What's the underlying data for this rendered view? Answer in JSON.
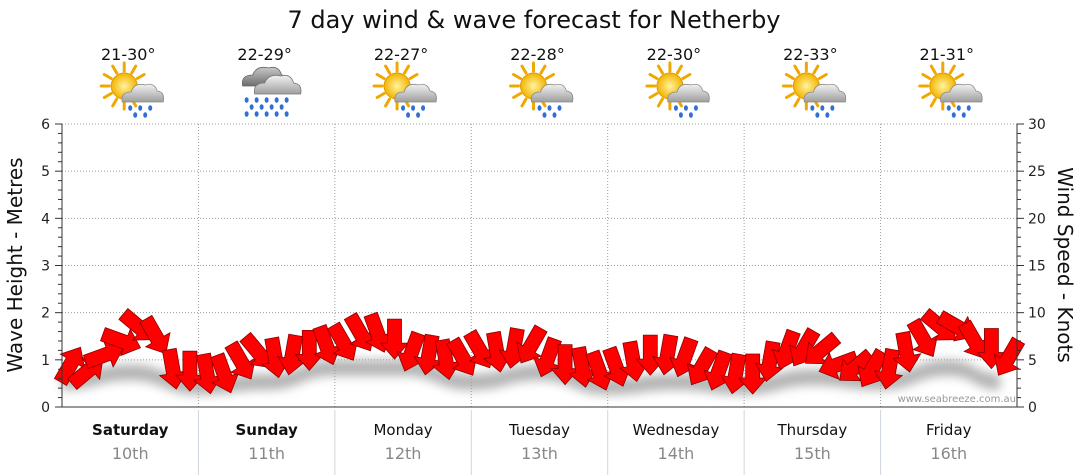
{
  "chart_data": {
    "type": "line",
    "title": "7 day wind & wave forecast for Netherby",
    "ylabel_left": "Wave Height - Metres",
    "ylabel_right": "Wind Speed - Knots",
    "ylim_left": [
      0,
      6
    ],
    "ylim_right": [
      0,
      30
    ],
    "left_ticks": [
      "0",
      "1",
      "2",
      "3",
      "4",
      "5",
      "6"
    ],
    "right_ticks": [
      "0",
      "5",
      "10",
      "15",
      "20",
      "25",
      "30"
    ],
    "days": [
      {
        "name": "Saturday",
        "date": "10th",
        "temp": "21-30°",
        "icon": "partly-cloudy-showers-icon",
        "bold": true
      },
      {
        "name": "Sunday",
        "date": "11th",
        "temp": "22-29°",
        "icon": "rain-cloud-icon",
        "bold": true
      },
      {
        "name": "Monday",
        "date": "12th",
        "temp": "22-27°",
        "icon": "partly-cloudy-showers-icon",
        "bold": false
      },
      {
        "name": "Tuesday",
        "date": "13th",
        "temp": "22-28°",
        "icon": "partly-cloudy-showers-icon",
        "bold": false
      },
      {
        "name": "Wednesday",
        "date": "14th",
        "temp": "22-30°",
        "icon": "partly-cloudy-showers-icon",
        "bold": false
      },
      {
        "name": "Thursday",
        "date": "15th",
        "temp": "22-33°",
        "icon": "partly-cloudy-showers-icon",
        "bold": false
      },
      {
        "name": "Friday",
        "date": "16th",
        "temp": "21-31°",
        "icon": "partly-cloudy-showers-icon",
        "bold": false
      }
    ],
    "wind_series": {
      "name": "Wind Speed",
      "x_day": [
        0.0,
        0.125,
        0.25,
        0.375,
        0.5,
        0.625,
        0.75,
        0.875,
        1.0,
        1.125,
        1.25,
        1.375,
        1.5,
        1.625,
        1.75,
        1.875,
        2.0,
        2.125,
        2.25,
        2.375,
        2.5,
        2.625,
        2.75,
        2.875,
        3.0,
        3.125,
        3.25,
        3.375,
        3.5,
        3.625,
        3.75,
        3.875,
        4.0,
        4.125,
        4.25,
        4.375,
        4.5,
        4.625,
        4.75,
        4.875,
        5.0,
        5.125,
        5.25,
        5.375,
        5.5,
        5.625,
        5.75,
        5.875,
        6.0,
        6.125,
        6.25,
        6.375,
        6.5,
        6.625,
        6.75,
        6.875
      ],
      "knots": [
        4.5,
        3.8,
        5.5,
        7.0,
        8.5,
        7.5,
        4.0,
        3.8,
        3.5,
        3.5,
        4.8,
        5.8,
        5.2,
        5.5,
        6.0,
        6.5,
        6.8,
        7.8,
        7.8,
        7.2,
        5.8,
        5.5,
        5.0,
        5.2,
        6.0,
        5.8,
        6.2,
        6.5,
        5.2,
        4.5,
        4.2,
        3.8,
        4.2,
        4.8,
        5.5,
        5.5,
        5.2,
        4.2,
        3.8,
        3.5,
        3.5,
        4.8,
        6.0,
        6.2,
        6.0,
        4.5,
        4.2,
        4.0,
        4.0,
        5.8,
        7.2,
        8.5,
        8.5,
        7.0,
        6.2,
        5.2
      ],
      "direction_deg": [
        300,
        320,
        340,
        20,
        40,
        60,
        80,
        90,
        80,
        70,
        60,
        50,
        80,
        100,
        90,
        70,
        60,
        60,
        70,
        90,
        110,
        100,
        80,
        60,
        60,
        80,
        100,
        120,
        110,
        90,
        80,
        70,
        70,
        80,
        90,
        100,
        110,
        120,
        110,
        100,
        90,
        100,
        110,
        120,
        140,
        160,
        140,
        120,
        100,
        80,
        60,
        40,
        30,
        60,
        90,
        120
      ]
    },
    "wave_series": {
      "name": "Wave Height",
      "x_day": [
        0.0,
        0.5,
        1.0,
        1.5,
        2.0,
        2.5,
        3.0,
        3.5,
        4.0,
        4.5,
        5.0,
        5.5,
        6.0,
        6.5,
        6.875
      ],
      "metres": [
        0.7,
        0.9,
        0.6,
        0.7,
        1.0,
        1.0,
        0.7,
        0.9,
        0.6,
        0.7,
        0.6,
        0.8,
        0.7,
        1.0,
        0.7
      ]
    }
  },
  "credit": "www.seabreeze.com.au",
  "colors": {
    "arrow_fill": "#ff0000",
    "arrow_stroke": "#8b0000",
    "shadow": "#9a9a9a",
    "grid": "#9c9c9c",
    "divider": "#cfd6dd"
  }
}
